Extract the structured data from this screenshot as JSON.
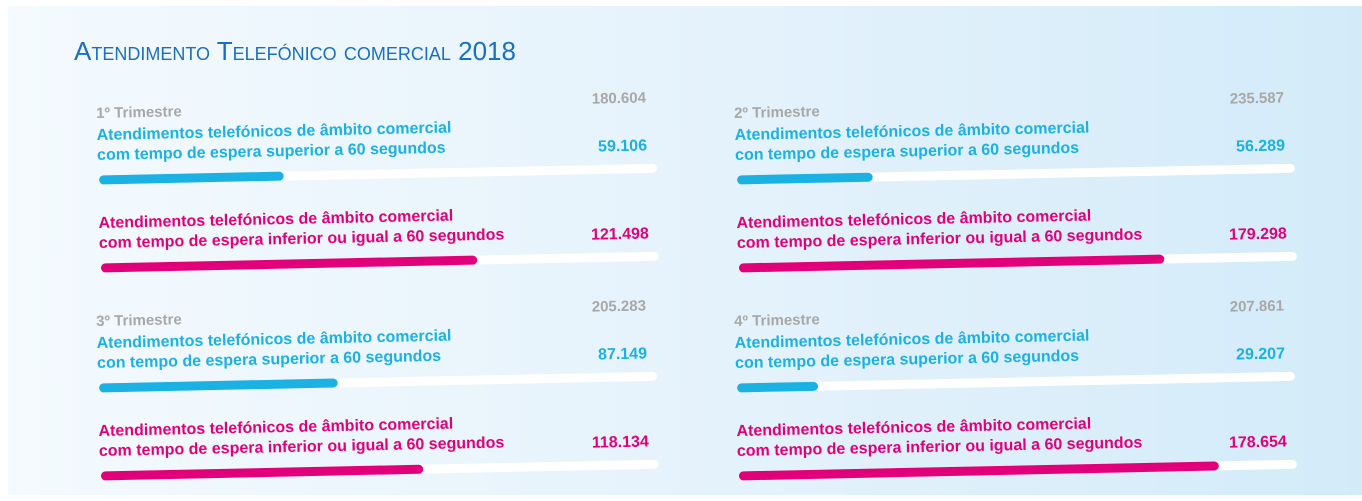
{
  "title": "Atendimento Telefónico comercial 2018",
  "chart_data": [
    {
      "type": "progress",
      "title": "1º Trimestre",
      "total": 180604,
      "total_label": "180.604",
      "categories": [
        [
          "Atendimentos telefónicos de âmbito comercial",
          "com tempo de espera superior a 60 segundos"
        ],
        [
          "Atendimentos telefónicos de âmbito comercial",
          "com tempo de espera inferior ou igual a 60 segundos"
        ]
      ],
      "values": [
        59106,
        121498
      ],
      "value_labels": [
        "59.106",
        "121.498"
      ],
      "colors": [
        "#1bb1e3",
        "#e2007a"
      ]
    },
    {
      "type": "progress",
      "title": "2º Trimestre",
      "total": 235587,
      "total_label": "235.587",
      "categories": [
        [
          "Atendimentos telefónicos de âmbito comercial",
          "con tempo de espera superior a 60 segundos"
        ],
        [
          "Atendimentos telefónicos de âmbito comercial",
          "com tempo de espera inferior ou igual a 60 segundos"
        ]
      ],
      "values": [
        56289,
        179298
      ],
      "value_labels": [
        "56.289",
        "179.298"
      ],
      "colors": [
        "#1bb1e3",
        "#e2007a"
      ]
    },
    {
      "type": "progress",
      "title": "3º Trimestre",
      "total": 205283,
      "total_label": "205.283",
      "categories": [
        [
          "Atendimentos telefónicos de âmbito comercial",
          "con tempo de espera superior a 60 segundos"
        ],
        [
          "Atendimentos telefónicos de âmbito comercial",
          "com tempo de espera inferior ou igual a 60 segundos"
        ]
      ],
      "values": [
        87149,
        118134
      ],
      "value_labels": [
        "87.149",
        "118.134"
      ],
      "colors": [
        "#1bb1e3",
        "#e2007a"
      ]
    },
    {
      "type": "progress",
      "title": "4º Trimestre",
      "total": 207861,
      "total_label": "207.861",
      "categories": [
        [
          "Atendimentos telefónicos de âmbito comercial",
          "con tempo de espera superior a 60 segundos"
        ],
        [
          "Atendimentos telefónicos de âmbito comercial",
          "com tempo de espera inferior ou igual a 60 segundos"
        ]
      ],
      "values": [
        29207,
        178654
      ],
      "value_labels": [
        "29.207",
        "178.654"
      ],
      "colors": [
        "#1bb1e3",
        "#e2007a"
      ]
    }
  ]
}
